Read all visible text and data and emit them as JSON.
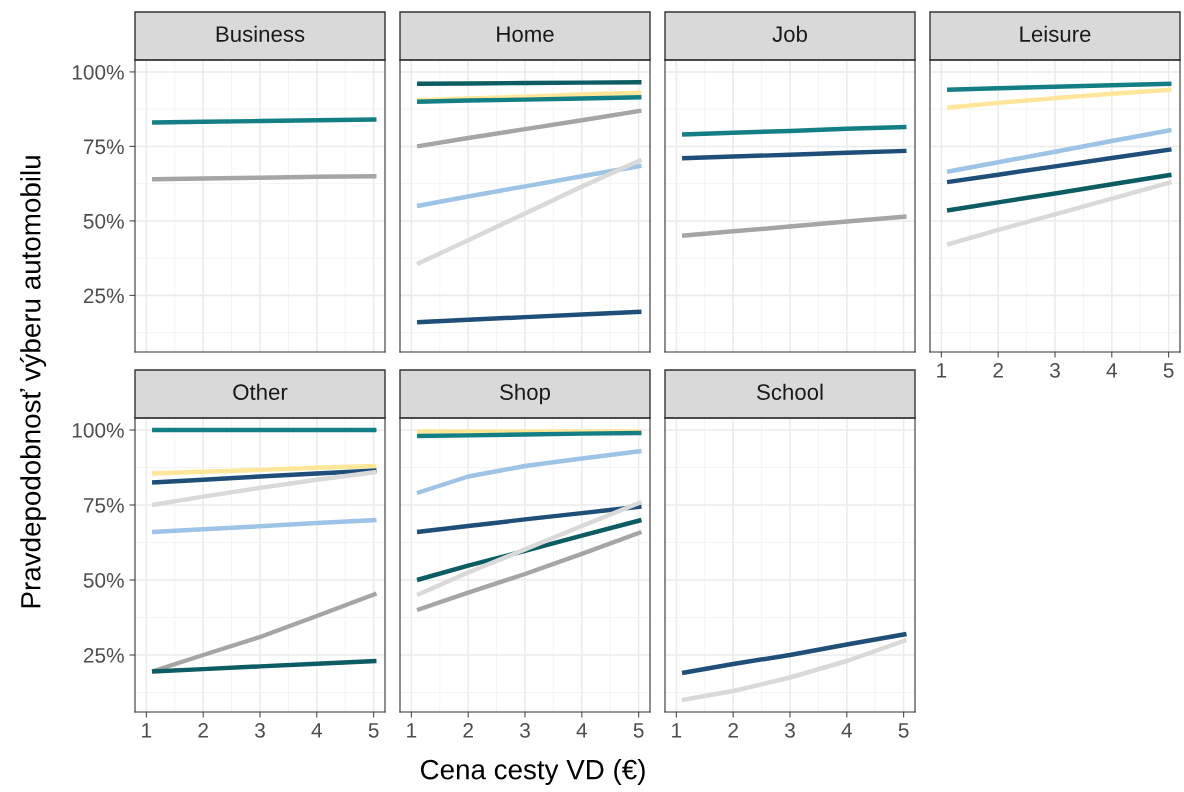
{
  "chart_data": [
    {
      "type": "line",
      "title": "Business",
      "ylabel": "Pravdepodobnosť výberu automobilu",
      "tick_labels": "y",
      "grid": true,
      "legend": false,
      "xlim": [
        0.8,
        5.2
      ],
      "ylim": [
        6,
        104
      ],
      "xticks": [
        1,
        2,
        3,
        4,
        5
      ],
      "yticks": [
        {
          "value": 25,
          "label": "25%"
        },
        {
          "value": 50,
          "label": "50%"
        },
        {
          "value": 75,
          "label": "75%"
        },
        {
          "value": 100,
          "label": "100%"
        }
      ],
      "x": [
        1.1,
        2,
        3,
        4,
        5.05
      ],
      "series": [
        {
          "color": "#137f85",
          "values": [
            83,
            83.3,
            83.5,
            83.8,
            84
          ]
        },
        {
          "color": "#a5a5a5",
          "values": [
            64,
            64.2,
            64.5,
            64.8,
            65
          ]
        }
      ]
    },
    {
      "type": "line",
      "title": "Home",
      "tick_labels": false,
      "grid": true,
      "legend": false,
      "xlim": [
        0.8,
        5.2
      ],
      "ylim": [
        6,
        104
      ],
      "xticks": [
        1,
        2,
        3,
        4,
        5
      ],
      "yticks": [
        {
          "value": 25,
          "label": null
        },
        {
          "value": 50,
          "label": null
        },
        {
          "value": 75,
          "label": null
        },
        {
          "value": 100,
          "label": null
        }
      ],
      "x": [
        1.1,
        2,
        3,
        4,
        5.05
      ],
      "series": [
        {
          "color": "#0b5c63",
          "values": [
            96,
            96.1,
            96.3,
            96.4,
            96.5
          ]
        },
        {
          "color": "#ffe699",
          "values": [
            90.5,
            91.1,
            91.7,
            92.4,
            93
          ]
        },
        {
          "color": "#137f85",
          "values": [
            90,
            90.4,
            90.7,
            91.1,
            91.5
          ]
        },
        {
          "color": "#a5a5a5",
          "values": [
            75,
            77.8,
            80.8,
            83.8,
            87
          ]
        },
        {
          "color": "#9dc3e6",
          "values": [
            55,
            58.2,
            61.6,
            65,
            68.5
          ]
        },
        {
          "color": "#d9d9d9",
          "values": [
            35.5,
            43.5,
            52.5,
            61.5,
            70.5
          ]
        },
        {
          "color": "#1f4e79",
          "values": [
            16,
            16.8,
            17.7,
            18.6,
            19.5
          ]
        }
      ]
    },
    {
      "type": "line",
      "title": "Job",
      "tick_labels": false,
      "grid": true,
      "legend": false,
      "xlim": [
        0.8,
        5.2
      ],
      "ylim": [
        6,
        104
      ],
      "xticks": [
        1,
        2,
        3,
        4,
        5
      ],
      "yticks": [
        {
          "value": 25,
          "label": null
        },
        {
          "value": 50,
          "label": null
        },
        {
          "value": 75,
          "label": null
        },
        {
          "value": 100,
          "label": null
        }
      ],
      "x": [
        1.1,
        2,
        3,
        4,
        5.05
      ],
      "series": [
        {
          "color": "#137f85",
          "values": [
            79,
            79.6,
            80.2,
            80.9,
            81.5
          ]
        },
        {
          "color": "#1f4e79",
          "values": [
            71,
            71.6,
            72.2,
            72.9,
            73.5
          ]
        },
        {
          "color": "#a5a5a5",
          "values": [
            45,
            46.5,
            48.1,
            49.8,
            51.5
          ]
        }
      ]
    },
    {
      "type": "line",
      "title": "Leisure",
      "tick_labels": "x",
      "grid": true,
      "legend": false,
      "xlim": [
        0.8,
        5.2
      ],
      "ylim": [
        6,
        104
      ],
      "xticks": [
        1,
        2,
        3,
        4,
        5
      ],
      "yticks": [
        {
          "value": 25,
          "label": null
        },
        {
          "value": 50,
          "label": null
        },
        {
          "value": 75,
          "label": null
        },
        {
          "value": 100,
          "label": null
        }
      ],
      "x": [
        1.1,
        2,
        3,
        4,
        5.05
      ],
      "series": [
        {
          "color": "#137f85",
          "values": [
            94,
            94.5,
            95,
            95.5,
            96
          ]
        },
        {
          "color": "#ffe699",
          "values": [
            88,
            89.6,
            91.2,
            92.7,
            94
          ]
        },
        {
          "color": "#9dc3e6",
          "values": [
            66.5,
            69.7,
            73.2,
            76.8,
            80.5
          ]
        },
        {
          "color": "#1f4e79",
          "values": [
            63,
            65.5,
            68.3,
            71.1,
            74
          ]
        },
        {
          "color": "#0b5c63",
          "values": [
            53.5,
            56.2,
            59.2,
            62.3,
            65.5
          ]
        },
        {
          "color": "#d9d9d9",
          "values": [
            42,
            47,
            52.2,
            57.5,
            63
          ]
        }
      ]
    },
    {
      "type": "line",
      "title": "Other",
      "grid": true,
      "legend": false,
      "xlim": [
        0.8,
        5.2
      ],
      "ylim": [
        6,
        104
      ],
      "xticks": [
        1,
        2,
        3,
        4,
        5
      ],
      "yticks": [
        {
          "value": 25,
          "label": "25%"
        },
        {
          "value": 50,
          "label": "50%"
        },
        {
          "value": 75,
          "label": "75%"
        },
        {
          "value": 100,
          "label": "100%"
        }
      ],
      "x": [
        1.1,
        2,
        3,
        4,
        5.05
      ],
      "series": [
        {
          "color": "#137f85",
          "values": [
            100,
            100,
            100,
            100,
            100
          ]
        },
        {
          "color": "#ffe699",
          "values": [
            85.5,
            86.1,
            86.7,
            87.4,
            88
          ]
        },
        {
          "color": "#1f4e79",
          "values": [
            82.5,
            83.4,
            84.5,
            85.5,
            86.5
          ]
        },
        {
          "color": "#d9d9d9",
          "values": [
            75,
            77.8,
            80.7,
            83.4,
            86
          ]
        },
        {
          "color": "#9dc3e6",
          "values": [
            66,
            66.9,
            67.9,
            69,
            70
          ]
        },
        {
          "color": "#a5a5a5",
          "values": [
            19.5,
            25,
            31,
            38,
            45.5
          ]
        },
        {
          "color": "#0b5c63",
          "values": [
            19.5,
            20.3,
            21.2,
            22.1,
            23
          ]
        }
      ]
    },
    {
      "type": "line",
      "title": "Shop",
      "xlabel": "Cena cesty VD (€)",
      "tick_labels": "x",
      "grid": true,
      "legend": false,
      "xlim": [
        0.8,
        5.2
      ],
      "ylim": [
        6,
        104
      ],
      "xticks": [
        1,
        2,
        3,
        4,
        5
      ],
      "yticks": [
        {
          "value": 25,
          "label": null
        },
        {
          "value": 50,
          "label": null
        },
        {
          "value": 75,
          "label": null
        },
        {
          "value": 100,
          "label": null
        }
      ],
      "x": [
        1.1,
        2,
        3,
        4,
        5.05
      ],
      "series": [
        {
          "color": "#ffe699",
          "values": [
            99.5,
            99.5,
            99.5,
            99.5,
            99.5
          ]
        },
        {
          "color": "#137f85",
          "values": [
            98,
            98.2,
            98.5,
            98.8,
            99
          ]
        },
        {
          "color": "#9dc3e6",
          "values": [
            79,
            84.5,
            88,
            90.5,
            93
          ]
        },
        {
          "color": "#1f4e79",
          "values": [
            66,
            68,
            70.2,
            72.3,
            74.5
          ]
        },
        {
          "color": "#0b5c63",
          "values": [
            50,
            54.8,
            59.7,
            64.8,
            70
          ]
        },
        {
          "color": "#d9d9d9",
          "values": [
            45,
            52.5,
            60.2,
            68,
            76
          ]
        },
        {
          "color": "#a5a5a5",
          "values": [
            40,
            45.8,
            52,
            58.7,
            66
          ]
        }
      ]
    },
    {
      "type": "line",
      "title": "School",
      "tick_labels": "x",
      "grid": true,
      "legend": false,
      "xlim": [
        0.8,
        5.2
      ],
      "ylim": [
        6,
        104
      ],
      "xticks": [
        1,
        2,
        3,
        4,
        5
      ],
      "yticks": [
        {
          "value": 25,
          "label": null
        },
        {
          "value": 50,
          "label": null
        },
        {
          "value": 75,
          "label": null
        },
        {
          "value": 100,
          "label": null
        }
      ],
      "x": [
        1.1,
        2,
        3,
        4,
        5.05
      ],
      "series": [
        {
          "color": "#1f4e79",
          "values": [
            19,
            22,
            25,
            28.5,
            32
          ]
        },
        {
          "color": "#d9d9d9",
          "values": [
            10,
            13,
            17.5,
            23,
            30
          ]
        }
      ]
    }
  ]
}
